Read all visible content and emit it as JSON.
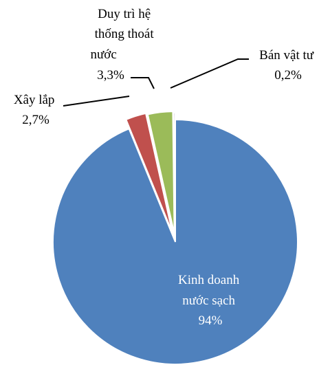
{
  "chart_data": {
    "type": "pie",
    "title": "",
    "slices": [
      {
        "name": "Kinh doanh nước sạch",
        "value": 94,
        "label_lines": [
          "Kinh doanh",
          "nước sạch",
          "94%"
        ],
        "color": "#4f81bd"
      },
      {
        "name": "Xây lắp",
        "value": 2.7,
        "label_lines": [
          "Xây lắp",
          "2,7%"
        ],
        "color": "#c0504d"
      },
      {
        "name": "Duy trì hệ thống thoát nước",
        "value": 3.3,
        "label_lines": [
          "Duy trì hệ",
          "thống thoát",
          "nước",
          "3,3%"
        ],
        "color": "#9bbb59"
      },
      {
        "name": "Bán vật tư",
        "value": 0.2,
        "label_lines": [
          "Bán vật tư",
          "0,2%"
        ],
        "color": "#8064a2"
      }
    ],
    "exploded": true,
    "legend": "none"
  }
}
